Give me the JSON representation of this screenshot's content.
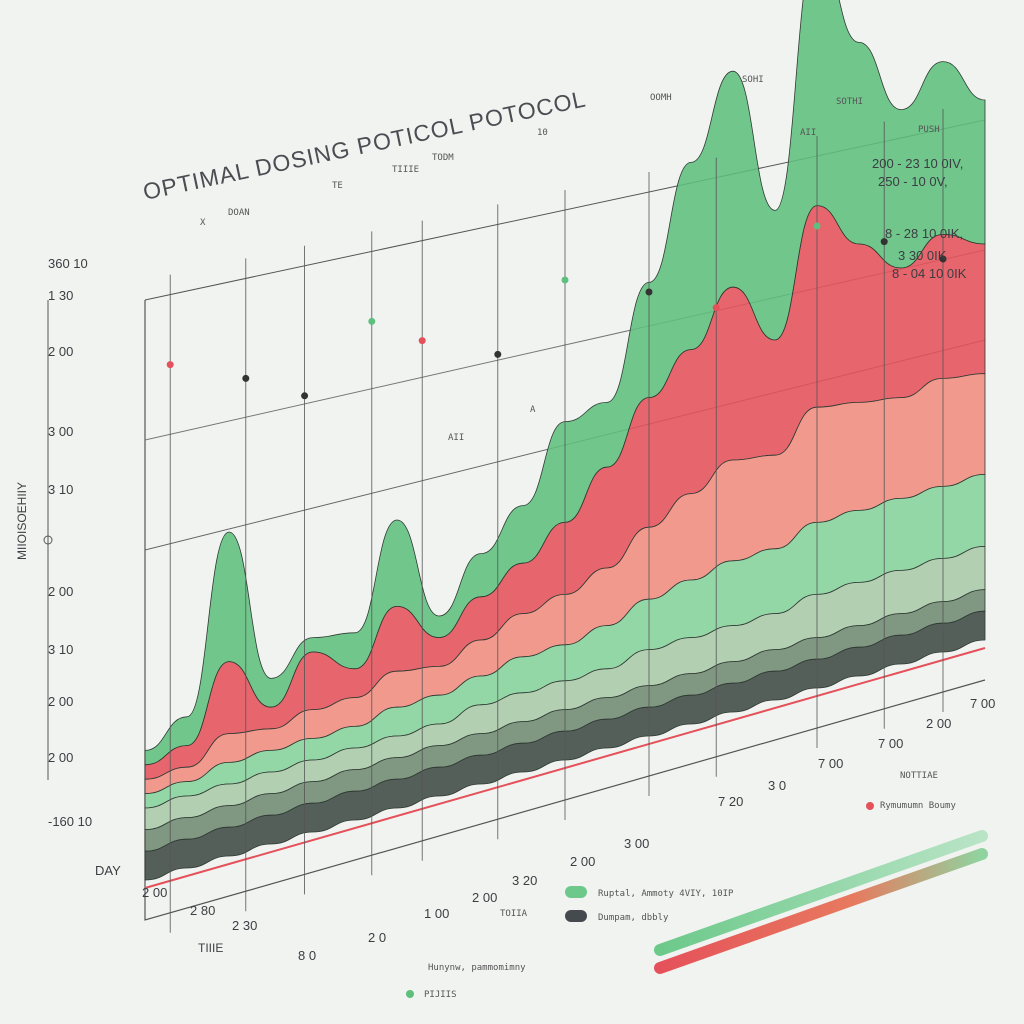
{
  "chart_data": {
    "type": "area",
    "title": "OPTIMAL DOSING POTICOL POTOCOL",
    "ylabel": "MIIOISOEHIIY",
    "xlabel": "TIIIE",
    "left_ticks": [
      "360 10",
      "1 30",
      "2 00",
      "3 00",
      "3 10",
      "2 00",
      "3 10",
      "2 00",
      "2 00",
      "-160 10"
    ],
    "bottom_ticks": [
      "DAY",
      "2 00",
      "2 80",
      "2 30",
      "8 0",
      "2 0",
      "1 00",
      "2 00",
      "3 20",
      "2 00",
      "3 00",
      "7 20",
      "3 0",
      "7 00",
      "7 00",
      "2 00",
      "7 00"
    ],
    "top_labels": [
      "X",
      "DOAN",
      "TE",
      "TIIIE",
      "TODM",
      "10",
      "OOMH",
      "SOHI",
      "SOTHI",
      "PUSH"
    ],
    "peak_labels": [
      "AII",
      "A",
      "AII"
    ],
    "right_annotations": [
      "200 - 23 10 0IV,",
      "250 - 10 0V,",
      "8 - 28 10 0IK,",
      "3 30 0IK",
      "8 - 04 10 0IK"
    ],
    "legend": [
      {
        "label": "Ruptal, Ammoty 4VIY, 10IP",
        "color": "#6cc98a"
      },
      {
        "label": "Dumpam, dbbly",
        "color": "#444a4d"
      }
    ],
    "legend_extra": [
      "TOIIA",
      "NOTTIAE",
      "Rymumumn Boumy"
    ],
    "footer_notes": [
      "Hunynw, pammomimny",
      "PIJIIS"
    ],
    "x": [
      0,
      1,
      2,
      3,
      4,
      5,
      6,
      7,
      8,
      9,
      10,
      11,
      12,
      13,
      14,
      15,
      16,
      17,
      18,
      19,
      20
    ],
    "series": [
      {
        "values": [
          2,
          4,
          18,
          4,
          2,
          5,
          12,
          3,
          6,
          8,
          14,
          9,
          16,
          26,
          30,
          18,
          36,
          28,
          22,
          24,
          20
        ],
        "color": "#5fbf7d"
      },
      {
        "values": [
          2,
          3,
          10,
          3,
          8,
          4,
          9,
          4,
          6,
          7,
          10,
          14,
          18,
          20,
          24,
          16,
          28,
          22,
          18,
          20,
          18
        ],
        "color": "#e5515a"
      },
      {
        "values": [
          2,
          2,
          4,
          3,
          4,
          4,
          5,
          4,
          5,
          6,
          7,
          8,
          10,
          12,
          14,
          13,
          16,
          15,
          14,
          15,
          14
        ],
        "color": "#f08c7e"
      },
      {
        "values": [
          2,
          2,
          3,
          3,
          3,
          3,
          4,
          4,
          4,
          5,
          5,
          6,
          7,
          8,
          9,
          9,
          10,
          10,
          10,
          10,
          10
        ],
        "color": "#86d39c"
      },
      {
        "values": [
          3,
          3,
          3,
          3,
          3,
          3,
          3,
          3,
          4,
          4,
          4,
          4,
          5,
          5,
          5,
          5,
          6,
          6,
          6,
          6,
          6
        ],
        "color": "#a9c9a9"
      },
      {
        "values": [
          3,
          3,
          3,
          3,
          3,
          3,
          3,
          3,
          3,
          3,
          3,
          3,
          3,
          3,
          3,
          3,
          3,
          3,
          3,
          3,
          3
        ],
        "color": "#6f8a72"
      },
      {
        "values": [
          4,
          4,
          4,
          4,
          4,
          4,
          4,
          4,
          4,
          4,
          4,
          4,
          4,
          4,
          4,
          4,
          4,
          4,
          4,
          4,
          4
        ],
        "color": "#3e4a44"
      }
    ]
  }
}
